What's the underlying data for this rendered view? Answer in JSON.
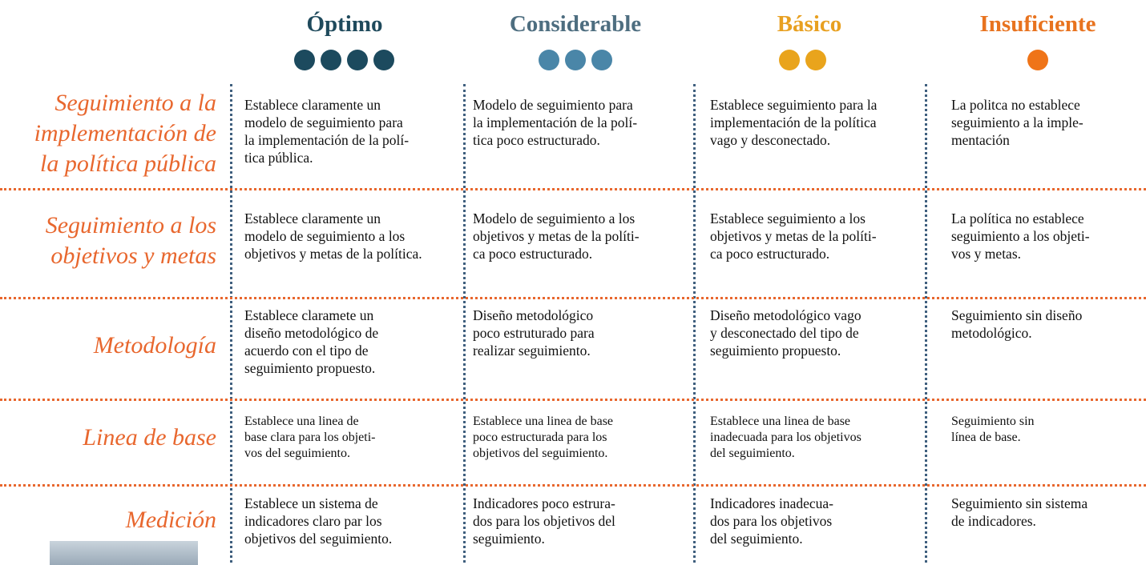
{
  "header": {
    "levels": [
      "Óptimo",
      "Considerable",
      "Básico",
      "Insuficiente"
    ]
  },
  "rows": [
    {
      "label": [
        "Seguimiento a la",
        "implementación de",
        "la política pública"
      ],
      "cells": [
        [
          "Establece claramente un",
          "modelo de seguimiento para",
          "la implementación de la polí-",
          "tica pública."
        ],
        [
          "Modelo de seguimiento para",
          "la implementación de la polí-",
          "tica poco estructurado."
        ],
        [
          "Establece seguimiento para la",
          "implementación de la política",
          "vago y desconectado."
        ],
        [
          "La politca no establece",
          "seguimiento a la imple-",
          "mentación"
        ]
      ]
    },
    {
      "label": [
        "Seguimiento a los",
        "objetivos y metas"
      ],
      "cells": [
        [
          "Establece claramente un",
          "modelo de seguimiento a los",
          "objetivos y metas de la política."
        ],
        [
          "Modelo de seguimiento a los",
          "objetivos y metas de la políti-",
          "ca poco estructurado."
        ],
        [
          "Establece seguimiento a los",
          "objetivos y metas de la políti-",
          "ca poco estructurado."
        ],
        [
          "La política no establece",
          "seguimiento a los objeti-",
          "vos y metas."
        ]
      ]
    },
    {
      "label": [
        "Metodología"
      ],
      "cells": [
        [
          "Establece claramete un",
          "diseño metodológico de",
          "acuerdo con el tipo de",
          "seguimiento propuesto."
        ],
        [
          "Diseño metodológico",
          "poco estruturado para",
          "realizar seguimiento."
        ],
        [
          "Diseño metodológico vago",
          "y desconectado del tipo de",
          "seguimiento propuesto."
        ],
        [
          "Seguimiento sin diseño",
          "metodológico."
        ]
      ]
    },
    {
      "label": [
        "Linea de base"
      ],
      "cells": [
        [
          "Establece una linea de",
          "base clara para los objeti-",
          "vos del seguimiento."
        ],
        [
          "Establece una linea de base",
          "poco estructurada para los",
          "objetivos del seguimiento."
        ],
        [
          "Establece una linea de base",
          "inadecuada para los objetivos",
          "del seguimiento."
        ],
        [
          "Seguimiento sin",
          "línea de base."
        ]
      ]
    },
    {
      "label": [
        "Medición"
      ],
      "cells": [
        [
          "Establece un sistema de",
          "indicadores claro par los",
          "objetivos del seguimiento."
        ],
        [
          "Indicadores poco estrura-",
          "dos para los objetivos del",
          "seguimiento."
        ],
        [
          "Indicadores inadecua-",
          "dos para los objetivos",
          "del seguimiento."
        ],
        [
          "Seguimiento sin sistema",
          "de indicadores."
        ]
      ]
    }
  ]
}
